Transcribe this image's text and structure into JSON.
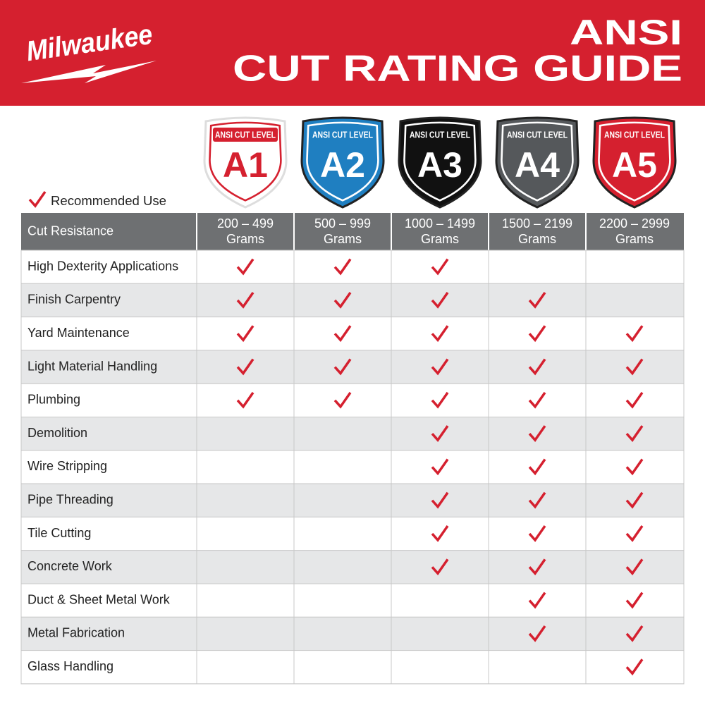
{
  "header": {
    "logo": "Milwaukee",
    "title_line1": "ANSI",
    "title_line2": "CUT RATING GUIDE"
  },
  "legend": {
    "label": "Recommended Use"
  },
  "levels": [
    {
      "badge_label": "ANSI CUT LEVEL",
      "level": "A1",
      "range": "200 – 499",
      "unit": "Grams",
      "color": "#ffffff"
    },
    {
      "badge_label": "ANSI CUT LEVEL",
      "level": "A2",
      "range": "500 – 999",
      "unit": "Grams",
      "color": "#1f7fc1"
    },
    {
      "badge_label": "ANSI CUT LEVEL",
      "level": "A3",
      "range": "1000 – 1499",
      "unit": "Grams",
      "color": "#111111"
    },
    {
      "badge_label": "ANSI CUT LEVEL",
      "level": "A4",
      "range": "1500 – 2199",
      "unit": "Grams",
      "color": "#55585b"
    },
    {
      "badge_label": "ANSI CUT LEVEL",
      "level": "A5",
      "range": "2200 – 2999",
      "unit": "Grams",
      "color": "#d5202f"
    }
  ],
  "table": {
    "header": "Cut Resistance",
    "rows": [
      {
        "application": "High Dexterity Applications",
        "recommended": [
          true,
          true,
          true,
          false,
          false
        ]
      },
      {
        "application": "Finish Carpentry",
        "recommended": [
          true,
          true,
          true,
          true,
          false
        ]
      },
      {
        "application": "Yard Maintenance",
        "recommended": [
          true,
          true,
          true,
          true,
          true
        ]
      },
      {
        "application": "Light Material Handling",
        "recommended": [
          true,
          true,
          true,
          true,
          true
        ]
      },
      {
        "application": "Plumbing",
        "recommended": [
          true,
          true,
          true,
          true,
          true
        ]
      },
      {
        "application": "Demolition",
        "recommended": [
          false,
          false,
          true,
          true,
          true
        ]
      },
      {
        "application": "Wire Stripping",
        "recommended": [
          false,
          false,
          true,
          true,
          true
        ]
      },
      {
        "application": "Pipe Threading",
        "recommended": [
          false,
          false,
          true,
          true,
          true
        ]
      },
      {
        "application": "Tile Cutting",
        "recommended": [
          false,
          false,
          true,
          true,
          true
        ]
      },
      {
        "application": "Concrete Work",
        "recommended": [
          false,
          false,
          true,
          true,
          true
        ]
      },
      {
        "application": "Duct & Sheet Metal Work",
        "recommended": [
          false,
          false,
          false,
          true,
          true
        ]
      },
      {
        "application": "Metal Fabrication",
        "recommended": [
          false,
          false,
          false,
          true,
          true
        ]
      },
      {
        "application": "Glass Handling",
        "recommended": [
          false,
          false,
          false,
          false,
          true
        ]
      }
    ]
  }
}
